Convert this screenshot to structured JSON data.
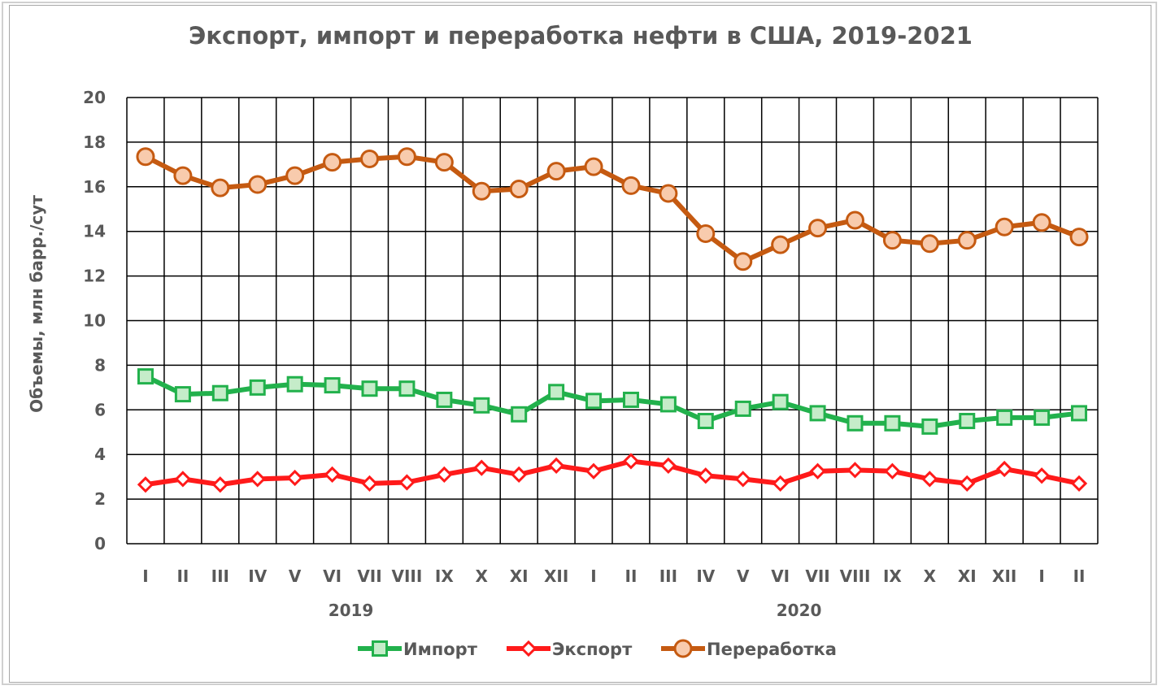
{
  "chart_data": {
    "type": "line",
    "title": "Экспорт,  импорт и переработка  нефти в США, 2019-2021",
    "ylabel": "Объемы, млн барр./сут",
    "xlabel": "",
    "ylim": [
      0,
      20
    ],
    "yticks": [
      "0",
      "2",
      "4",
      "6",
      "8",
      "10",
      "12",
      "14",
      "16",
      "18",
      "20"
    ],
    "categories": [
      "I",
      "II",
      "III",
      "IV",
      "V",
      "VI",
      "VII",
      "VIII",
      "IX",
      "X",
      "XI",
      "XII",
      "I",
      "II",
      "III",
      "IV",
      "V",
      "VI",
      "VII",
      "VIII",
      "IX",
      "X",
      "XI",
      "XII",
      "I",
      "II"
    ],
    "year_groups": [
      {
        "label": "2019",
        "start": 0,
        "end": 11
      },
      {
        "label": "2020",
        "start": 12,
        "end": 23
      }
    ],
    "grid": true,
    "legend_position": "bottom",
    "series": [
      {
        "name": "Импорт",
        "color": "#22b14c",
        "marker": "square",
        "values": [
          7.5,
          6.7,
          6.75,
          7.0,
          7.15,
          7.1,
          6.95,
          6.95,
          6.45,
          6.2,
          5.8,
          6.8,
          6.4,
          6.45,
          6.25,
          5.5,
          6.05,
          6.35,
          5.85,
          5.4,
          5.4,
          5.25,
          5.5,
          5.65,
          5.65,
          5.85
        ]
      },
      {
        "name": "Экспорт",
        "color": "#ff1a1a",
        "marker": "diamond",
        "values": [
          2.65,
          2.9,
          2.65,
          2.9,
          2.95,
          3.1,
          2.7,
          2.75,
          3.1,
          3.4,
          3.1,
          3.5,
          3.25,
          3.7,
          3.5,
          3.05,
          2.9,
          2.7,
          3.25,
          3.3,
          3.25,
          2.9,
          2.7,
          3.35,
          3.05,
          2.7
        ]
      },
      {
        "name": "Переработка",
        "color": "#c55a11",
        "marker": "circle",
        "values": [
          17.35,
          16.5,
          15.95,
          16.1,
          16.5,
          17.1,
          17.25,
          17.35,
          17.1,
          15.8,
          15.9,
          16.7,
          16.9,
          16.05,
          15.7,
          13.9,
          12.65,
          13.4,
          14.15,
          14.5,
          13.6,
          13.45,
          13.6,
          14.2,
          14.4,
          13.75
        ]
      }
    ]
  }
}
